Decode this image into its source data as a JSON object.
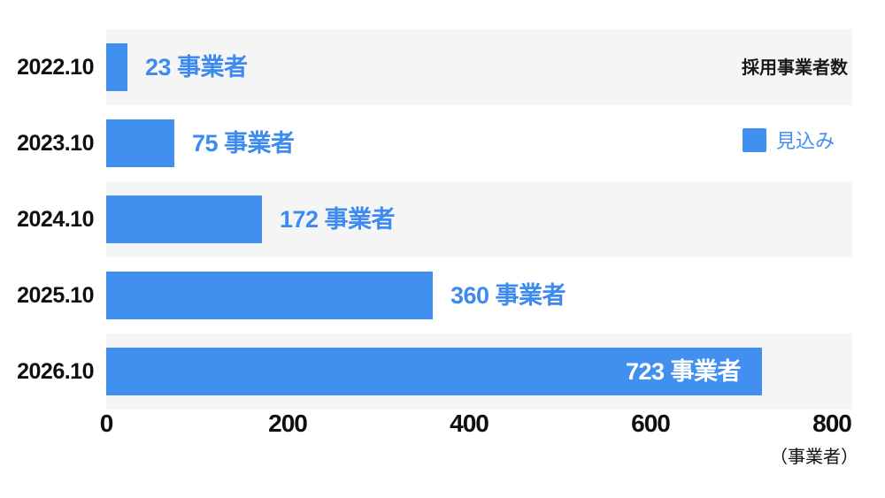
{
  "chart_data": {
    "type": "bar",
    "orientation": "horizontal",
    "title": "採用事業者数",
    "categories": [
      "2022.10",
      "2023.10",
      "2024.10",
      "2025.10",
      "2026.10"
    ],
    "values": [
      23,
      75,
      172,
      360,
      723
    ],
    "bar_labels": [
      "23 事業者",
      "75 事業者",
      "172 事業者",
      "360 事業者",
      "723 事業者"
    ],
    "value_suffix": "事業者",
    "xlabel": "（事業者）",
    "xlim": [
      0,
      800
    ],
    "xticks": [
      "0",
      "200",
      "400",
      "600",
      "800"
    ],
    "legend": [
      {
        "label": "見込み",
        "color": "#4190f0"
      }
    ],
    "legend_position": "right",
    "grid": false,
    "bar_color": "#4190f0",
    "value_label_color": "#3d8af0",
    "inside_label_color": "#ffffff",
    "row_stripe_color": "#f5f5f6",
    "axis_text_color": "#0f0f0f"
  }
}
